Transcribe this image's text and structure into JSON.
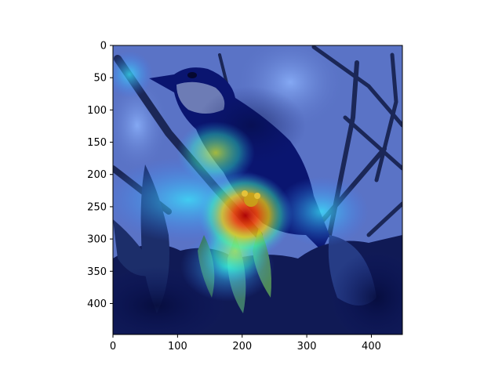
{
  "figure": {
    "image": {
      "subject": "bird perched on branch with leaves, overlaid by a heatmap",
      "heatmap_colormap": "jet"
    },
    "axes": {
      "x": {
        "range": [
          0,
          448
        ],
        "ticks": [
          {
            "value": 0,
            "label": "0"
          },
          {
            "value": 100,
            "label": "100"
          },
          {
            "value": 200,
            "label": "200"
          },
          {
            "value": 300,
            "label": "300"
          },
          {
            "value": 400,
            "label": "400"
          }
        ]
      },
      "y": {
        "range": [
          0,
          448
        ],
        "inverted": true,
        "ticks": [
          {
            "value": 0,
            "label": "0"
          },
          {
            "value": 50,
            "label": "50"
          },
          {
            "value": 100,
            "label": "100"
          },
          {
            "value": 150,
            "label": "150"
          },
          {
            "value": 200,
            "label": "200"
          },
          {
            "value": 250,
            "label": "250"
          },
          {
            "value": 300,
            "label": "300"
          },
          {
            "value": 350,
            "label": "350"
          },
          {
            "value": 400,
            "label": "400"
          }
        ]
      }
    },
    "colors": {
      "sky": "#5a73c6",
      "dark_overlay": "#0a1360",
      "hot": "#c81414"
    }
  }
}
